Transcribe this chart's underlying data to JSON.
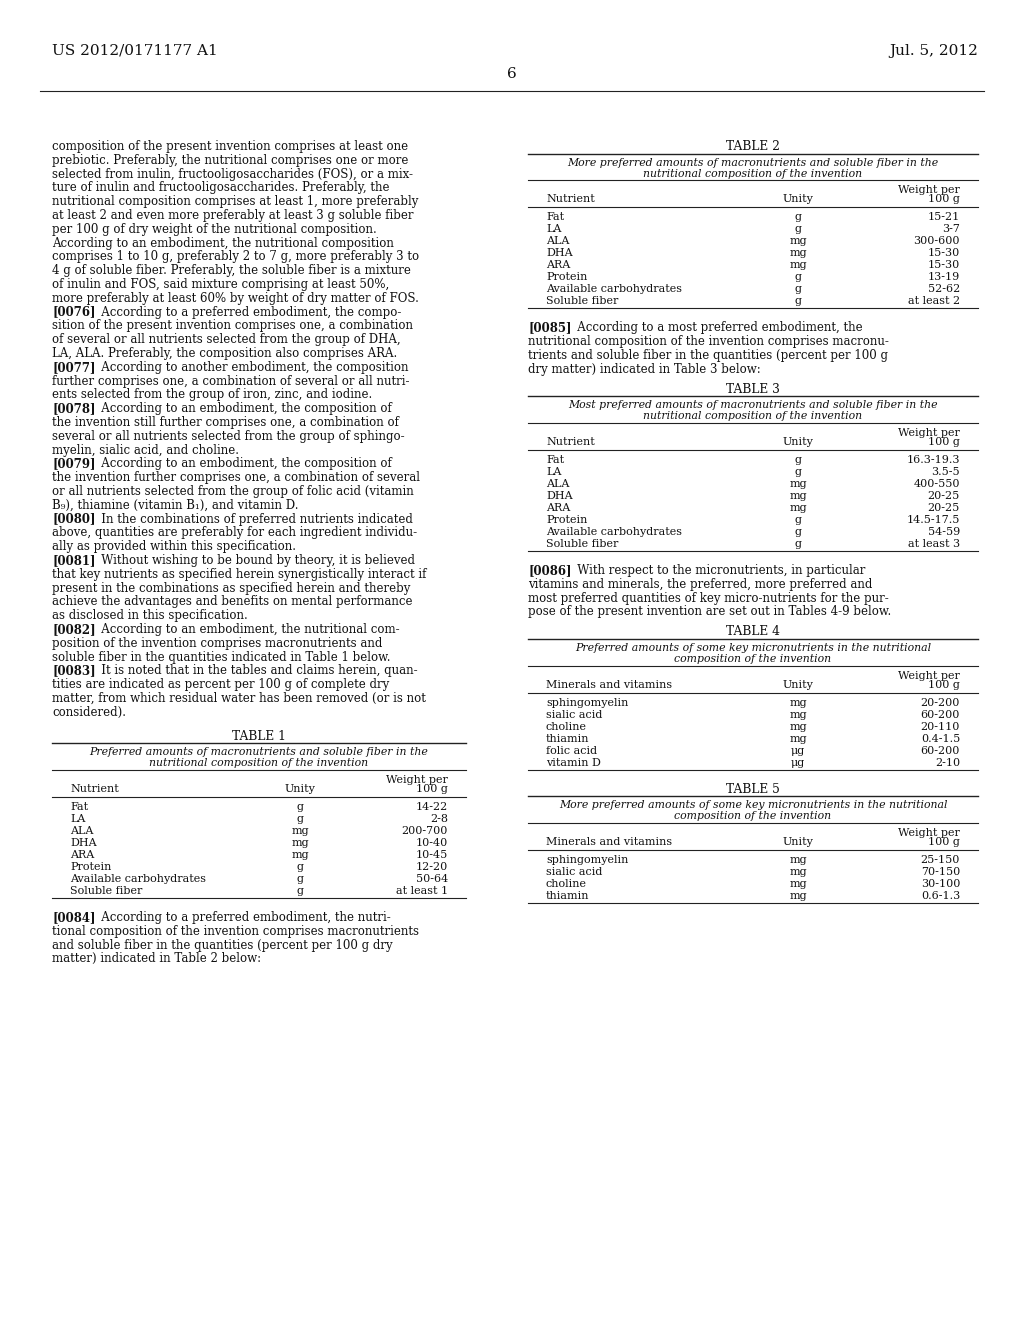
{
  "bg_color": "#ffffff",
  "header_left": "US 2012/0171177 A1",
  "header_right": "Jul. 5, 2012",
  "page_number": "6",
  "left_column_text": [
    {
      "text": "composition of the present invention comprises at least one",
      "marker": false
    },
    {
      "text": "prebiotic. Preferably, the nutritional comprises one or more",
      "marker": false
    },
    {
      "text": "selected from inulin, fructooligosaccharides (FOS), or a mix-",
      "marker": false
    },
    {
      "text": "ture of inulin and fructooligosaccharides. Preferably, the",
      "marker": false
    },
    {
      "text": "nutritional composition comprises at least 1, more preferably",
      "marker": false
    },
    {
      "text": "at least 2 and even more preferably at least 3 g soluble fiber",
      "marker": false
    },
    {
      "text": "per 100 g of dry weight of the nutritional composition.",
      "marker": false
    },
    {
      "text": "According to an embodiment, the nutritional composition",
      "marker": false
    },
    {
      "text": "comprises 1 to 10 g, preferably 2 to 7 g, more preferably 3 to",
      "marker": false
    },
    {
      "text": "4 g of soluble fiber. Preferably, the soluble fiber is a mixture",
      "marker": false
    },
    {
      "text": "of inulin and FOS, said mixture comprising at least 50%,",
      "marker": false
    },
    {
      "text": "more preferably at least 60% by weight of dry matter of FOS.",
      "marker": false
    },
    {
      "marker": true,
      "tag": "[0076]",
      "rest": "   According to a preferred embodiment, the compo-"
    },
    {
      "text": "sition of the present invention comprises one, a combination",
      "marker": false
    },
    {
      "text": "of several or all nutrients selected from the group of DHA,",
      "marker": false
    },
    {
      "text": "LA, ALA. Preferably, the composition also comprises ARA.",
      "marker": false
    },
    {
      "marker": true,
      "tag": "[0077]",
      "rest": "   According to another embodiment, the composition"
    },
    {
      "text": "further comprises one, a combination of several or all nutri-",
      "marker": false
    },
    {
      "text": "ents selected from the group of iron, zinc, and iodine.",
      "marker": false
    },
    {
      "marker": true,
      "tag": "[0078]",
      "rest": "   According to an embodiment, the composition of"
    },
    {
      "text": "the invention still further comprises one, a combination of",
      "marker": false
    },
    {
      "text": "several or all nutrients selected from the group of sphingo-",
      "marker": false
    },
    {
      "text": "myelin, sialic acid, and choline.",
      "marker": false
    },
    {
      "marker": true,
      "tag": "[0079]",
      "rest": "   According to an embodiment, the composition of"
    },
    {
      "text": "the invention further comprises one, a combination of several",
      "marker": false
    },
    {
      "text": "or all nutrients selected from the group of folic acid (vitamin",
      "marker": false
    },
    {
      "text": "B₉), thiamine (vitamin B₁), and vitamin D.",
      "marker": false
    },
    {
      "marker": true,
      "tag": "[0080]",
      "rest": "   In the combinations of preferred nutrients indicated"
    },
    {
      "text": "above, quantities are preferably for each ingredient individu-",
      "marker": false
    },
    {
      "text": "ally as provided within this specification.",
      "marker": false
    },
    {
      "marker": true,
      "tag": "[0081]",
      "rest": "   Without wishing to be bound by theory, it is believed"
    },
    {
      "text": "that key nutrients as specified herein synergistically interact if",
      "marker": false
    },
    {
      "text": "present in the combinations as specified herein and thereby",
      "marker": false
    },
    {
      "text": "achieve the advantages and benefits on mental performance",
      "marker": false
    },
    {
      "text": "as disclosed in this specification.",
      "marker": false
    },
    {
      "marker": true,
      "tag": "[0082]",
      "rest": "   According to an embodiment, the nutritional com-"
    },
    {
      "text": "position of the invention comprises macronutrients and",
      "marker": false
    },
    {
      "text": "soluble fiber in the quantities indicated in Table 1 below.",
      "marker": false
    },
    {
      "marker": true,
      "tag": "[0083]",
      "rest": "   It is noted that in the tables and claims herein, quan-"
    },
    {
      "text": "tities are indicated as percent per 100 g of complete dry",
      "marker": false
    },
    {
      "text": "matter, from which residual water has been removed (or is not",
      "marker": false
    },
    {
      "text": "considered).",
      "marker": false
    }
  ],
  "table1_title": "TABLE 1",
  "table1_subtitle": [
    "Preferred amounts of macronutrients and soluble fiber in the",
    "nutritional composition of the invention"
  ],
  "table1_col_headers": [
    "Nutrient",
    "Unity",
    "Weight per",
    "100 g"
  ],
  "table1_rows": [
    [
      "Fat",
      "g",
      "14-22"
    ],
    [
      "LA",
      "g",
      "2-8"
    ],
    [
      "ALA",
      "mg",
      "200-700"
    ],
    [
      "DHA",
      "mg",
      "10-40"
    ],
    [
      "ARA",
      "mg",
      "10-45"
    ],
    [
      "Protein",
      "g",
      "12-20"
    ],
    [
      "Available carbohydrates",
      "g",
      "50-64"
    ],
    [
      "Soluble fiber",
      "g",
      "at least 1"
    ]
  ],
  "para_after_table1": [
    {
      "marker": true,
      "tag": "[0084]",
      "rest": "   According to a preferred embodiment, the nutri-"
    },
    {
      "text": "tional composition of the invention comprises macronutrients",
      "marker": false
    },
    {
      "text": "and soluble fiber in the quantities (percent per 100 g dry",
      "marker": false
    },
    {
      "text": "matter) indicated in Table 2 below:",
      "marker": false
    }
  ],
  "table2_title": "TABLE 2",
  "table2_subtitle": [
    "More preferred amounts of macronutrients and soluble fiber in the",
    "nutritional composition of the invention"
  ],
  "table2_col_headers": [
    "Nutrient",
    "Unity",
    "Weight per",
    "100 g"
  ],
  "table2_rows": [
    [
      "Fat",
      "g",
      "15-21"
    ],
    [
      "LA",
      "g",
      "3-7"
    ],
    [
      "ALA",
      "mg",
      "300-600"
    ],
    [
      "DHA",
      "mg",
      "15-30"
    ],
    [
      "ARA",
      "mg",
      "15-30"
    ],
    [
      "Protein",
      "g",
      "13-19"
    ],
    [
      "Available carbohydrates",
      "g",
      "52-62"
    ],
    [
      "Soluble fiber",
      "g",
      "at least 2"
    ]
  ],
  "para_after_table2": [
    {
      "marker": true,
      "tag": "[0085]",
      "rest": "   According to a most preferred embodiment, the"
    },
    {
      "text": "nutritional composition of the invention comprises macronu-",
      "marker": false
    },
    {
      "text": "trients and soluble fiber in the quantities (percent per 100 g",
      "marker": false
    },
    {
      "text": "dry matter) indicated in Table 3 below:",
      "marker": false
    }
  ],
  "table3_title": "TABLE 3",
  "table3_subtitle": [
    "Most preferred amounts of macronutrients and soluble fiber in the",
    "nutritional composition of the invention"
  ],
  "table3_col_headers": [
    "Nutrient",
    "Unity",
    "Weight per",
    "100 g"
  ],
  "table3_rows": [
    [
      "Fat",
      "g",
      "16.3-19.3"
    ],
    [
      "LA",
      "g",
      "3.5-5"
    ],
    [
      "ALA",
      "mg",
      "400-550"
    ],
    [
      "DHA",
      "mg",
      "20-25"
    ],
    [
      "ARA",
      "mg",
      "20-25"
    ],
    [
      "Protein",
      "g",
      "14.5-17.5"
    ],
    [
      "Available carbohydrates",
      "g",
      "54-59"
    ],
    [
      "Soluble fiber",
      "g",
      "at least 3"
    ]
  ],
  "para_after_table3": [
    {
      "marker": true,
      "tag": "[0086]",
      "rest": "   With respect to the micronutrients, in particular"
    },
    {
      "text": "vitamins and minerals, the preferred, more preferred and",
      "marker": false
    },
    {
      "text": "most preferred quantities of key micro-nutrients for the pur-",
      "marker": false
    },
    {
      "text": "pose of the present invention are set out in Tables 4-9 below.",
      "marker": false
    }
  ],
  "table4_title": "TABLE 4",
  "table4_subtitle": [
    "Preferred amounts of some key micronutrients in the nutritional",
    "composition of the invention"
  ],
  "table4_col_headers": [
    "Minerals and vitamins",
    "Unity",
    "Weight per",
    "100 g"
  ],
  "table4_rows": [
    [
      "sphingomyelin",
      "mg",
      "20-200"
    ],
    [
      "sialic acid",
      "mg",
      "60-200"
    ],
    [
      "choline",
      "mg",
      "20-110"
    ],
    [
      "thiamin",
      "mg",
      "0.4-1.5"
    ],
    [
      "folic acid",
      "μg",
      "60-200"
    ],
    [
      "vitamin D",
      "μg",
      "2-10"
    ]
  ],
  "table5_title": "TABLE 5",
  "table5_subtitle": [
    "More preferred amounts of some key micronutrients in the nutritional",
    "composition of the invention"
  ],
  "table5_col_headers": [
    "Minerals and vitamins",
    "Unity",
    "Weight per",
    "100 g"
  ],
  "table5_rows": [
    [
      "sphingomyelin",
      "mg",
      "25-150"
    ],
    [
      "sialic acid",
      "mg",
      "70-150"
    ],
    [
      "choline",
      "mg",
      "30-100"
    ],
    [
      "thiamin",
      "mg",
      "0.6-1.3"
    ]
  ]
}
